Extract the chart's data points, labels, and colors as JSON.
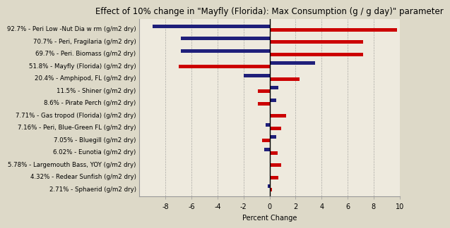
{
  "title": "Effect of 10% change in \"Mayfly (Florida): Max Consumption (g / g day)\" parameter",
  "xlabel": "Percent Change",
  "categories": [
    "92.7% - Peri Low -Nut Dia w rm (g/m2 dry)",
    "70.7% - Peri, Fragilaria (g/m2 dry)",
    "69.7% - Peri. Biomass (g/m2 dry)",
    "51.8% - Mayfly (Florida) (g/m2 dry)",
    "20.4% - Amphipod, FL (g/m2 dry)",
    "11.5% - Shiner (g/m2 dry)",
    "8.6% - Pirate Perch (g/m2 dry)",
    "7.71% - Gas tropod (Florida) (g/m2 dry)",
    "7.16% - Peri, Blue-Green FL (g/m2 dry)",
    "7.05% - Bluegill (g/m2 dry)",
    "6.02% - Eunotia (g/m2 dry)",
    "5.78% - Largemouth Bass, YOY (g/m2 dry)",
    "4.32% - Redear Sunfish (g/m2 dry)",
    "2.71% - Sphaerid (g/m2 dry)"
  ],
  "neg10_values": [
    -9.0,
    -6.8,
    -6.8,
    3.5,
    -2.0,
    0.7,
    0.5,
    0.1,
    -0.3,
    0.5,
    -0.4,
    0.1,
    0.05,
    -0.15
  ],
  "pos10_values": [
    9.8,
    7.2,
    7.2,
    -7.0,
    2.3,
    -0.9,
    -0.9,
    1.3,
    0.9,
    -0.6,
    0.6,
    0.9,
    0.7,
    0.2
  ],
  "neg_color": "#1f1f7a",
  "pos_color": "#cc0000",
  "background_color": "#ddd9c8",
  "plot_background": "#eeeade",
  "xlim": [
    -10,
    10
  ],
  "xticks": [
    -8,
    -6,
    -4,
    -2,
    0,
    2,
    4,
    6,
    8,
    10
  ],
  "title_fontsize": 8.5,
  "label_fontsize": 6.2,
  "tick_fontsize": 7.0,
  "bar_height": 0.28
}
